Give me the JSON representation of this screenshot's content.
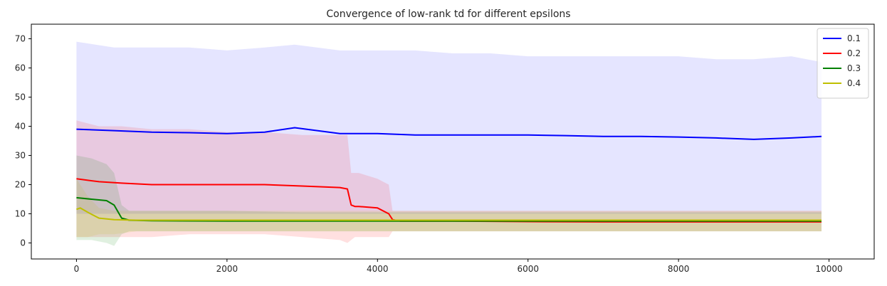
{
  "chart_data": {
    "type": "line",
    "title": "Convergence of low-rank td for different epsilons",
    "xlabel": "",
    "ylabel": "",
    "xlim": [
      -600,
      10600
    ],
    "ylim": [
      -5.5,
      75
    ],
    "xticks": [
      0,
      2000,
      4000,
      6000,
      8000,
      10000
    ],
    "yticks": [
      0,
      10,
      20,
      30,
      40,
      50,
      60,
      70
    ],
    "legend_position": "top-right",
    "grid": false,
    "series": [
      {
        "name": "0.1",
        "color": "#0000ff",
        "x": [
          0,
          500,
          1000,
          1500,
          2000,
          2500,
          2900,
          3500,
          4000,
          4500,
          5000,
          5500,
          6000,
          6500,
          7000,
          7500,
          8000,
          8500,
          9000,
          9500,
          9900
        ],
        "values": [
          39,
          38.5,
          38,
          37.8,
          37.5,
          38,
          39.5,
          37.5,
          37.5,
          37,
          37,
          37,
          37,
          36.8,
          36.5,
          36.5,
          36.3,
          36,
          35.5,
          36,
          36.5
        ],
        "band_upper": [
          69,
          67,
          67,
          67,
          66,
          67,
          68,
          66,
          66,
          66,
          65,
          65,
          64,
          64,
          64,
          64,
          64,
          63,
          63,
          64,
          62
        ],
        "band_lower": [
          10,
          10,
          10,
          10,
          10,
          10,
          10,
          10,
          10,
          10,
          10,
          10,
          10,
          10,
          10,
          10,
          10,
          10,
          10,
          10,
          10
        ]
      },
      {
        "name": "0.2",
        "color": "#ff0000",
        "x": [
          0,
          300,
          600,
          1000,
          1500,
          2000,
          2500,
          3000,
          3500,
          3600,
          3650,
          3700,
          3750,
          4000,
          4150,
          4200,
          4300,
          5000,
          6000,
          7000,
          8000,
          9000,
          9900
        ],
        "values": [
          22,
          21,
          20.5,
          20,
          20,
          20,
          20,
          19.5,
          19,
          18.5,
          13,
          12.5,
          12.5,
          12,
          10,
          8,
          7.5,
          7.5,
          7.3,
          7.2,
          7.2,
          7.2,
          7.2
        ],
        "band_upper": [
          42,
          40,
          40,
          39,
          39,
          38,
          38,
          37,
          37,
          37,
          24,
          24,
          24,
          22,
          20,
          11,
          11,
          11,
          11,
          11,
          11,
          11,
          11
        ],
        "band_lower": [
          2,
          2,
          2,
          2,
          3,
          3,
          3,
          2,
          1,
          0,
          1,
          2,
          2,
          2,
          2,
          4,
          4,
          4,
          4,
          4,
          4,
          4,
          4
        ]
      },
      {
        "name": "0.3",
        "color": "#008000",
        "x": [
          0,
          200,
          400,
          500,
          600,
          700,
          1000,
          2000,
          3000,
          4000,
          5000,
          6000,
          7000,
          8000,
          9000,
          9900
        ],
        "values": [
          15.5,
          15,
          14.5,
          13,
          8.5,
          7.8,
          7.6,
          7.5,
          7.5,
          7.5,
          7.5,
          7.5,
          7.5,
          7.5,
          7.5,
          7.5
        ],
        "band_upper": [
          30,
          29,
          27,
          24,
          13,
          11,
          11,
          11,
          10.5,
          10.5,
          10.5,
          10.5,
          10.5,
          10.5,
          10.5,
          10.5
        ],
        "band_lower": [
          1,
          1,
          0,
          -1,
          3,
          4,
          4,
          4,
          4,
          4,
          4,
          4,
          4,
          4,
          4,
          4
        ]
      },
      {
        "name": "0.4",
        "color": "#bfbf00",
        "x": [
          0,
          50,
          150,
          300,
          500,
          800,
          1500,
          3000,
          5000,
          7000,
          9000,
          9900
        ],
        "values": [
          11.5,
          12,
          10.5,
          8.5,
          8,
          7.8,
          7.8,
          7.8,
          7.8,
          7.8,
          7.8,
          7.8
        ],
        "band_upper": [
          22,
          20,
          16,
          12,
          11,
          11,
          11,
          11,
          11,
          11,
          11,
          11
        ],
        "band_lower": [
          2,
          2,
          2,
          3,
          3,
          4,
          4,
          4,
          4,
          4,
          4,
          4
        ]
      }
    ]
  }
}
